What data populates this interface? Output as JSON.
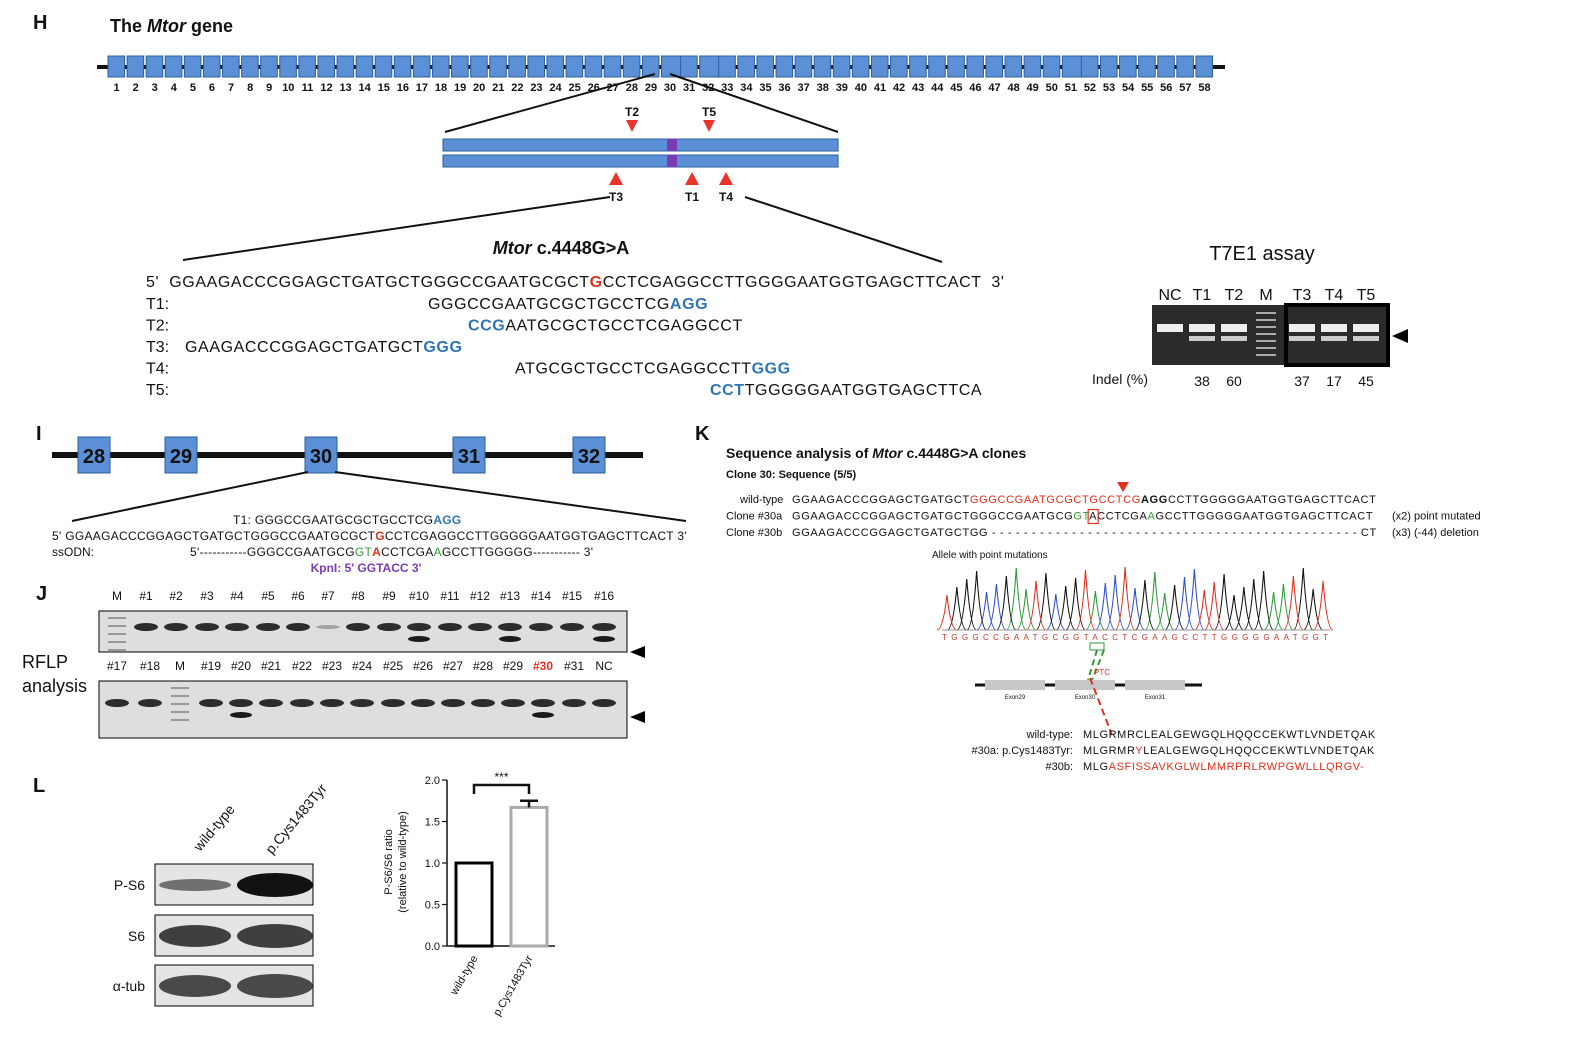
{
  "panel_h": {
    "letter": "H",
    "title": [
      {
        "text": "The "
      },
      {
        "text": "Mtor",
        "italic": true
      },
      {
        "text": " gene"
      }
    ],
    "exons": [
      1,
      2,
      3,
      4,
      5,
      6,
      7,
      8,
      9,
      10,
      11,
      12,
      13,
      14,
      15,
      16,
      17,
      18,
      19,
      20,
      21,
      22,
      23,
      24,
      25,
      26,
      27,
      28,
      29,
      30,
      31,
      32,
      33,
      34,
      35,
      36,
      37,
      38,
      39,
      40,
      41,
      42,
      43,
      44,
      45,
      46,
      47,
      48,
      49,
      50,
      51,
      52,
      53,
      54,
      55,
      56,
      57,
      58
    ],
    "guides_top": [
      "T2",
      "T5"
    ],
    "guides_bottom": [
      "T3",
      "T1",
      "T4"
    ],
    "mutation_title": [
      {
        "text": "Mtor",
        "italic": true
      },
      {
        "text": " c.4448G>A"
      }
    ],
    "wild_type": [
      {
        "text": "5'  GGAAGACCCGGAGCTGATGCTGGGCCGAATGCGCT"
      },
      {
        "text": "G",
        "color": "#e0301e",
        "bold": true
      },
      {
        "text": "CCTCGAGGCCTTGGGGAATGGTGAGCTTCACT  3'"
      }
    ],
    "guides": [
      {
        "label": "T1:",
        "segments": [
          {
            "text": "GGGCCGAATGCGCTGCCTCG"
          },
          {
            "text": "AGG",
            "color": "#2e75b6",
            "bold": true
          }
        ]
      },
      {
        "label": "T2:",
        "segments": [
          {
            "text": "CCG",
            "color": "#2e75b6",
            "bold": true
          },
          {
            "text": "AATGCGCTGCCTCGAGGCCT"
          }
        ]
      },
      {
        "label": "T3:",
        "segments": [
          {
            "text": "GAAGACCCGGAGCTGATGCT"
          },
          {
            "text": "GGG",
            "color": "#2e75b6",
            "bold": true
          }
        ]
      },
      {
        "label": "T4:",
        "segments": [
          {
            "text": "ATGCGCTGCCTCGAGGCCTT"
          },
          {
            "text": "GGG",
            "color": "#2e75b6",
            "bold": true
          }
        ]
      },
      {
        "label": "T5:",
        "segments": [
          {
            "text": "CCT",
            "color": "#2e75b6",
            "bold": true
          },
          {
            "text": "TGGGGGAATGGTGAGCTTCA"
          }
        ]
      }
    ],
    "t7e1": {
      "title": "T7E1 assay",
      "lanes": [
        "NC",
        "T1",
        "T2",
        "M",
        "T3",
        "T4",
        "T5"
      ],
      "indel_label": "Indel (%)",
      "indel": [
        null,
        38,
        60,
        null,
        37,
        17,
        45
      ]
    }
  },
  "panel_i": {
    "letter": "I",
    "exons": [
      28,
      29,
      30,
      31,
      32
    ],
    "t1": [
      {
        "text": "T1: GGGCCGAATGCGCTGCCTCG"
      },
      {
        "text": "AGG",
        "color": "#2e75b6",
        "bold": true
      }
    ],
    "wild_type": [
      {
        "text": "5' GGAAGACCCGGAGCTGATGCTGGGCCGAATGCGCT"
      },
      {
        "text": "G",
        "color": "#e0301e",
        "bold": true
      },
      {
        "text": "CCTCGAGGCCTTGGGGGAATGGTGAGCTTCACT 3'"
      }
    ],
    "ssodn_label": "ssODN:",
    "ssodn": [
      {
        "text": "5'-----------GGGCCGAATGCG"
      },
      {
        "text": "GT",
        "color": "#3a9a3a"
      },
      {
        "text": "A",
        "color": "#e0301e",
        "bold": true
      },
      {
        "text": "CCTCGA"
      },
      {
        "text": "A",
        "color": "#3a9a3a"
      },
      {
        "text": "GCCTTGGGGG----------- 3'"
      }
    ],
    "kpni": "KpnI: 5' GGTACC 3'"
  },
  "panel_j": {
    "letter": "J",
    "label": [
      "RFLP",
      "analysis"
    ],
    "lanes_1": [
      "M",
      "#1",
      "#2",
      "#3",
      "#4",
      "#5",
      "#6",
      "#7",
      "#8",
      "#9",
      "#10",
      "#11",
      "#12",
      "#13",
      "#14",
      "#15",
      "#16"
    ],
    "lanes_2": [
      "#17",
      "#18",
      "M",
      "#19",
      "#20",
      "#21",
      "#22",
      "#23",
      "#24",
      "#25",
      "#26",
      "#27",
      "#28",
      "#29",
      "#30",
      "#31",
      "NC"
    ],
    "highlight_color": "#e0301e"
  },
  "panel_k": {
    "letter": "K",
    "title": [
      {
        "text": "Sequence analysis of "
      },
      {
        "text": "Mtor",
        "italic": true
      },
      {
        "text": " c.4448G>A clones"
      }
    ],
    "subtitle": "Clone 30: Sequence (5/5)",
    "rows": [
      {
        "label": "wild-type",
        "segments": [
          {
            "text": "GGAAGACCCGGAGCTGATGCT"
          },
          {
            "text": "GGGCCGAATGCGCTGCCTCG",
            "color": "#e0301e"
          },
          {
            "text": "AGG",
            "bold": true
          },
          {
            "text": "CCTTGGGGGAATGGTGAGCTTCACT"
          }
        ],
        "note": null
      },
      {
        "label": "Clone #30a",
        "segments": [
          {
            "text": "GGAAGACCCGGAGCTGATGCTGGGCCGAATGCG"
          },
          {
            "text": "GT",
            "color": "#3a9a3a"
          },
          {
            "text": "A",
            "box": true
          },
          {
            "text": "CCTCGA"
          },
          {
            "text": "A",
            "color": "#3a9a3a"
          },
          {
            "text": "GCCTTGGGGGAATGGTGAGCTTCACT"
          }
        ],
        "note": "(x2) point mutated"
      },
      {
        "label": "Clone #30b",
        "segments": [
          {
            "text": "GGAAGACCCGGAGCTGATGCTGG - - - - - - - - - - - - - - - - - - - - - - - - - - - - - - - - - - - - - - - - - - - - - - CT"
          }
        ],
        "note": "(x3) (-44) deletion"
      }
    ],
    "chromatogram_title": "Allele with point mutations",
    "bases": "TGGGCCGAATGCGGTACCTCGAAGCCTTGGGGGAATGGT",
    "exon_labels": [
      "Exon29",
      "Exon30",
      "Exon31"
    ],
    "ptc": "PTC",
    "proteins": [
      {
        "label": "wild-type:",
        "segments": [
          {
            "text": "MLGRMRCLEALGEWGQLHQQCCEKWTLVNDETQAK"
          }
        ]
      },
      {
        "label": "#30a: p.Cys1483Tyr:",
        "segments": [
          {
            "text": "MLGRMR"
          },
          {
            "text": "Y",
            "color": "#e0301e"
          },
          {
            "text": "LEALGEWGQLHQQCCEKWTLVNDETQAK"
          }
        ]
      },
      {
        "label": "#30b:",
        "segments": [
          {
            "text": "MLG"
          },
          {
            "text": "ASFISSAVKGLWLMMRPRLRWPGWLLLQRGV-",
            "color": "#e0301e"
          }
        ]
      }
    ]
  },
  "panel_l": {
    "letter": "L",
    "columns": [
      "wild-type",
      "p.Cys1483Tyr"
    ],
    "rows": [
      "P-S6",
      "S6",
      "α-tub"
    ]
  },
  "chart_data": {
    "type": "bar",
    "ylabel": [
      "P-S6/S6 ratio",
      "(relative to wild-type)"
    ],
    "categories": [
      "wild-type",
      "p.Cys1483Tyr"
    ],
    "values": [
      1.0,
      1.67
    ],
    "errors": [
      null,
      0.08
    ],
    "colors": [
      "#000000",
      "#aaaaaa"
    ],
    "significance": "***",
    "ylim": [
      0,
      2.0
    ],
    "yticks": [
      {
        "value": 0,
        "label": "0.0"
      },
      0.5,
      {
        "value": 1,
        "label": "1.0"
      },
      1.5,
      {
        "value": 2,
        "label": "2.0"
      }
    ]
  }
}
